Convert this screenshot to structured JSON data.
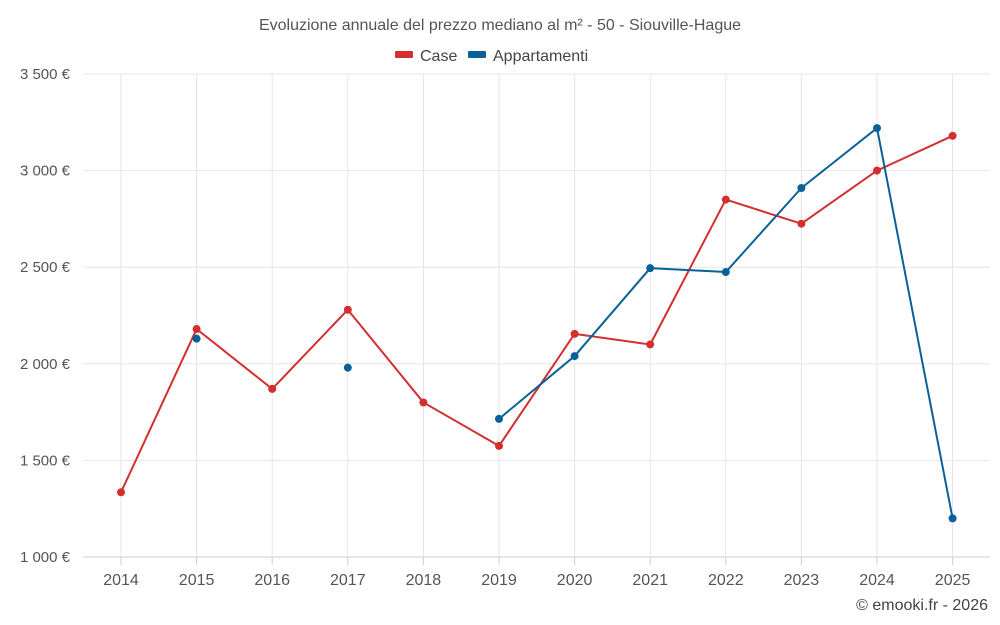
{
  "chart_data": {
    "type": "line",
    "title": "Evoluzione annuale del prezzo mediano al m² - 50 - Siouville-Hague",
    "categories": [
      "2014",
      "2015",
      "2016",
      "2017",
      "2018",
      "2019",
      "2020",
      "2021",
      "2022",
      "2023",
      "2024",
      "2025"
    ],
    "series": [
      {
        "name": "Case",
        "color": "#d32f2f",
        "values": [
          1335,
          2180,
          1870,
          2280,
          1800,
          1575,
          2155,
          2100,
          2850,
          2725,
          3000,
          3180
        ]
      },
      {
        "name": "Appartamenti",
        "color": "#0a6199",
        "values": [
          null,
          2130,
          null,
          1980,
          null,
          1715,
          2040,
          2495,
          2475,
          2910,
          3220,
          1200
        ]
      }
    ],
    "ylim": [
      1000,
      3500
    ],
    "yticks": [
      1000,
      1500,
      2000,
      2500,
      3000,
      3500
    ],
    "ytick_labels": [
      "1 000 €",
      "1 500 €",
      "2 000 €",
      "2 500 €",
      "3 000 €",
      "3 500 €"
    ],
    "xlabel": "",
    "ylabel": "",
    "legend_position": "top-center",
    "grid": true
  },
  "credit": "© emooki.fr - 2026"
}
